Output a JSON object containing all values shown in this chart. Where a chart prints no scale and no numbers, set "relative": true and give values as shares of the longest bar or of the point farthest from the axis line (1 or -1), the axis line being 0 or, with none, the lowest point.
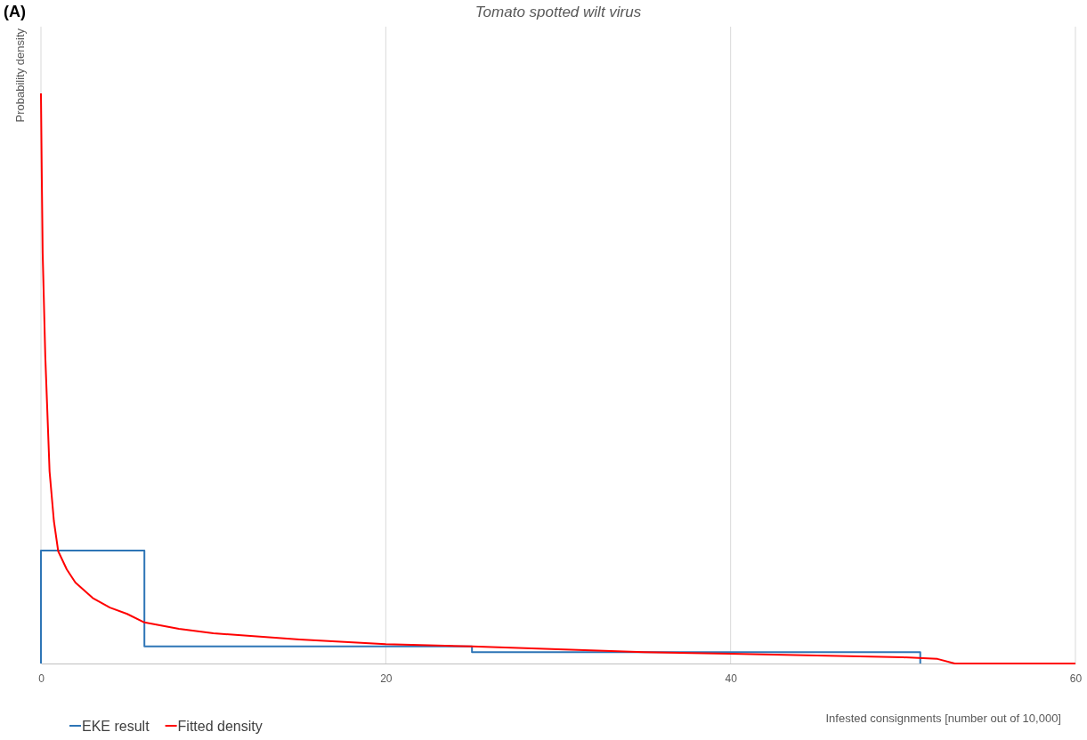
{
  "chart_data": {
    "type": "line",
    "title": "Tomato spotted wilt virus",
    "xlabel": "Infested consignments [number out of 10,000]",
    "ylabel": "Probability density",
    "annotations": [
      "(A)"
    ],
    "relative": true,
    "xlim": [
      0,
      60
    ],
    "xticks": [
      0,
      20,
      40,
      60
    ],
    "grid": "x",
    "legend": "bottom left",
    "marker": "none",
    "line_style": "solid",
    "series": [
      {
        "name": "EKE result",
        "color": "#2e75b6",
        "x": [
          0,
          0,
          6,
          6,
          25,
          25,
          51,
          51
        ],
        "values": [
          0,
          0.198,
          0.198,
          0.03,
          0.03,
          0.02,
          0.02,
          0
        ]
      },
      {
        "name": "Fitted density",
        "color": "#ff0000",
        "x": [
          0,
          0.05,
          0.1,
          0.25,
          0.5,
          0.75,
          1,
          1.5,
          2,
          3,
          4,
          5,
          6,
          8,
          10,
          15,
          20,
          25,
          30,
          35,
          40,
          45,
          50,
          52,
          53,
          60
        ],
        "values": [
          1,
          0.85,
          0.72,
          0.54,
          0.337,
          0.25,
          0.197,
          0.165,
          0.142,
          0.115,
          0.098,
          0.087,
          0.072,
          0.061,
          0.053,
          0.042,
          0.034,
          0.03,
          0.025,
          0.02,
          0.017,
          0.014,
          0.011,
          0.008,
          0,
          0
        ]
      }
    ]
  }
}
